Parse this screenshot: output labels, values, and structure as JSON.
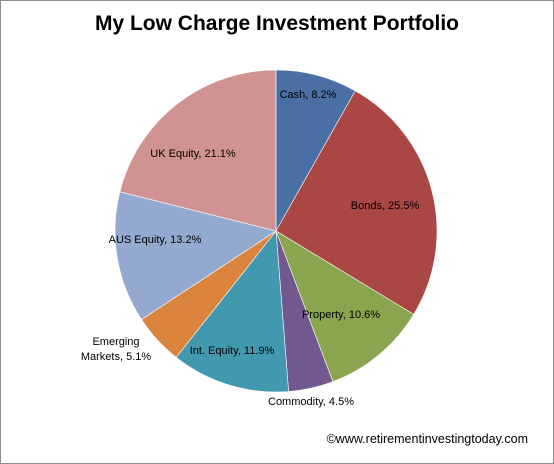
{
  "chart_data": {
    "type": "pie",
    "title": "My Low Charge Investment Portfolio",
    "slices": [
      {
        "label": "Cash, 8.2%",
        "value": 8.2,
        "color": "#4a6fa5"
      },
      {
        "label": "Bonds, 25.5%",
        "value": 25.5,
        "color": "#aa4644"
      },
      {
        "label": "Property, 10.6%",
        "value": 10.6,
        "color": "#89a54e"
      },
      {
        "label": "Commodity, 4.5%",
        "value": 4.5,
        "color": "#71588f"
      },
      {
        "label": "Int. Equity, 11.9%",
        "value": 11.9,
        "color": "#4198af"
      },
      {
        "label": [
          "Emerging",
          "Markets, 5.1%"
        ],
        "value": 5.1,
        "color": "#db843d"
      },
      {
        "label": "AUS Equity, 13.2%",
        "value": 13.2,
        "color": "#93a9cf"
      },
      {
        "label": "UK Equity, 21.1%",
        "value": 21.1,
        "color": "#d19392"
      }
    ],
    "start_angle_deg": 0,
    "direction": "clockwise",
    "legend": "none"
  },
  "footer": {
    "credit": "©www.retirementinvestingtoday.com"
  }
}
